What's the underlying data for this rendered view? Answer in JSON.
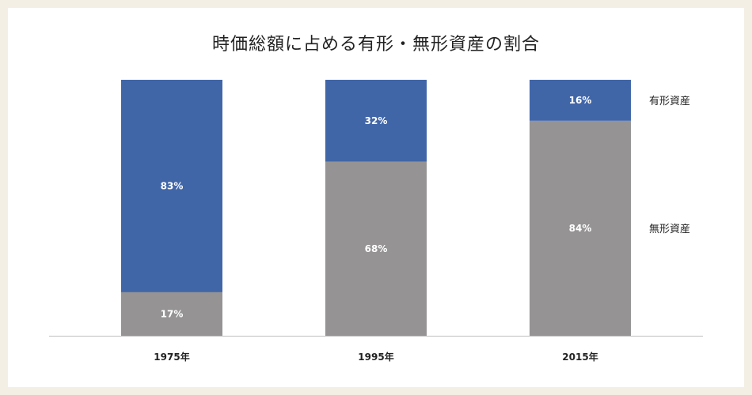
{
  "chart_data": {
    "type": "bar",
    "stacked": true,
    "title": "時価総額に占める有形・無形資産の割合",
    "categories": [
      "1975年",
      "1995年",
      "2015年"
    ],
    "series": [
      {
        "name": "無形資産",
        "values": [
          17,
          68,
          84
        ],
        "labels": [
          "17%",
          "68%",
          "84%"
        ],
        "color": "#959393"
      },
      {
        "name": "有形資産",
        "values": [
          83,
          32,
          16
        ],
        "labels": [
          "83%",
          "32%",
          "16%"
        ],
        "color": "#4166a8"
      }
    ],
    "ylim": [
      0,
      100
    ],
    "grid": false,
    "legend": "right"
  }
}
